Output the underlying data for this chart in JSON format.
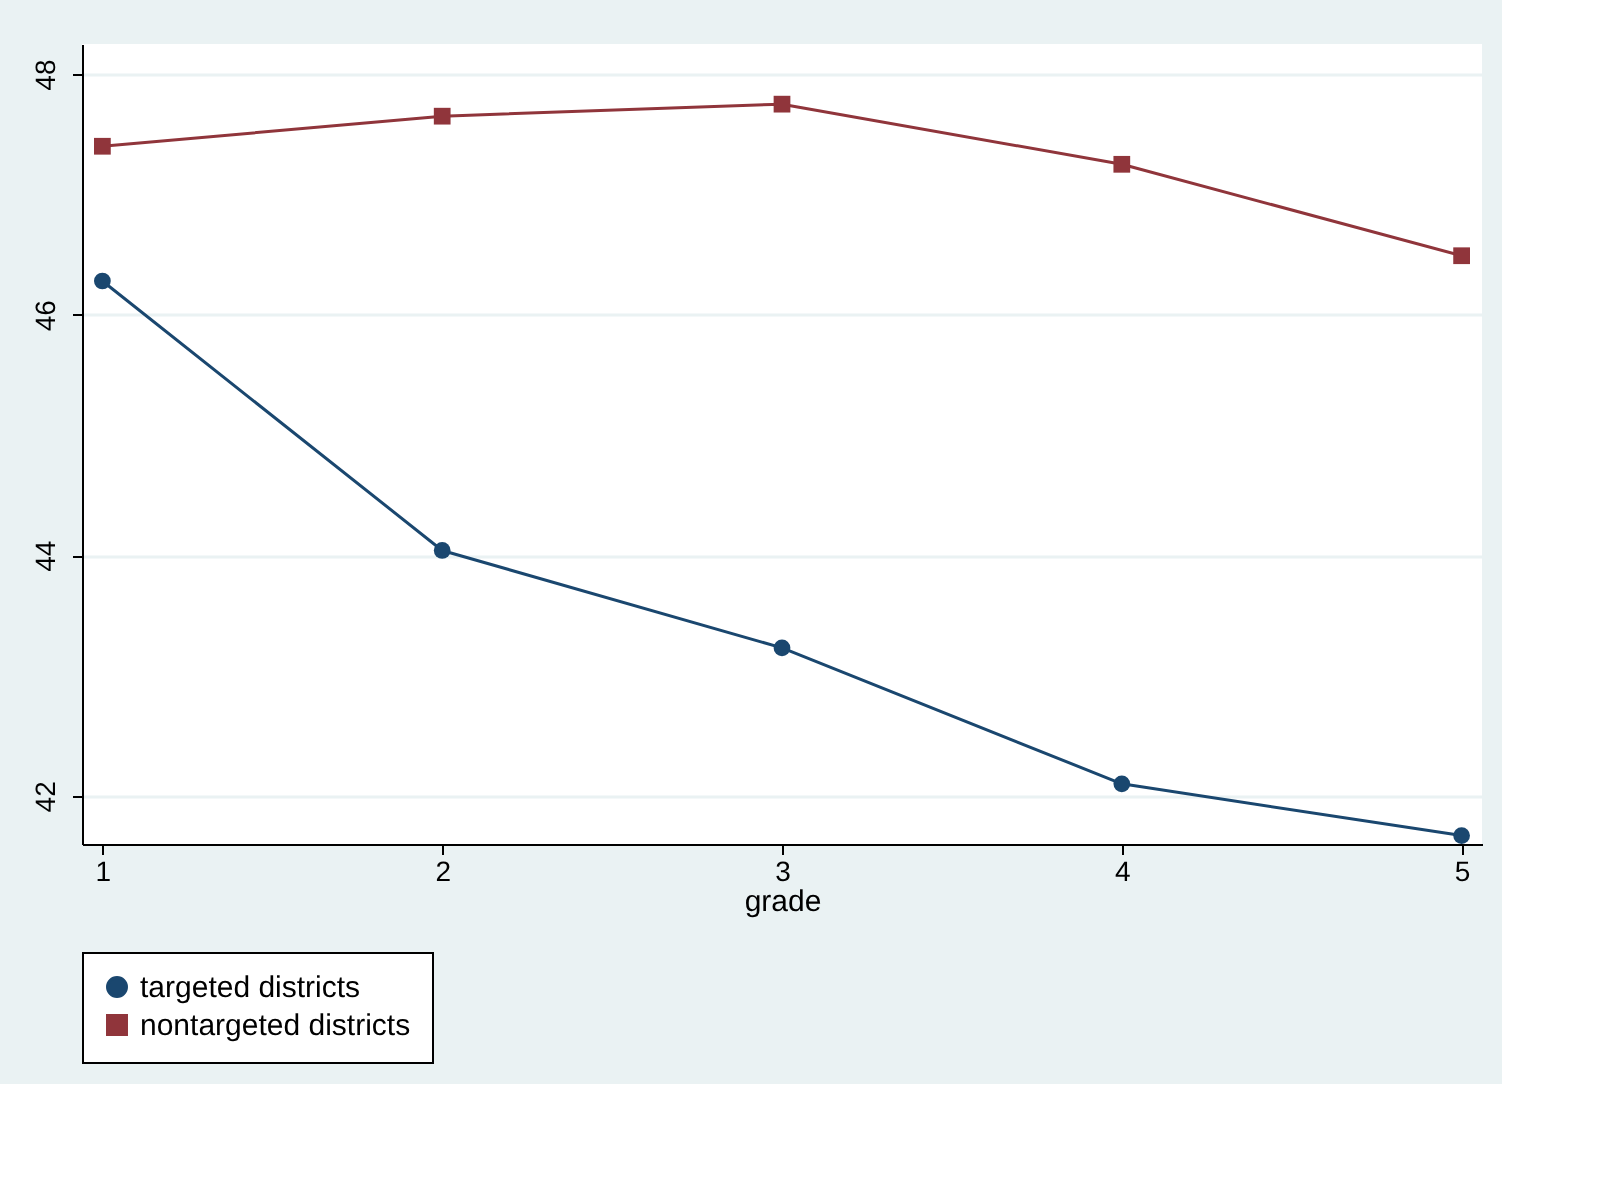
{
  "chart_data": {
    "type": "line",
    "xlabel": "grade",
    "x": [
      1,
      2,
      3,
      4,
      5
    ],
    "xlim": [
      0.94,
      5.06
    ],
    "xticks": [
      1,
      2,
      3,
      4,
      5
    ],
    "ylim": [
      41.6,
      48.25
    ],
    "yticks": [
      42,
      44,
      46,
      48
    ],
    "grid": "y",
    "legend": "bottom",
    "series": [
      {
        "name": "targeted districts",
        "color": "#1a476f",
        "marker": "circle",
        "values": [
          46.28,
          44.04,
          43.23,
          42.1,
          41.67
        ]
      },
      {
        "name": "nontargeted districts",
        "color": "#90353b",
        "marker": "square",
        "values": [
          47.4,
          47.65,
          47.75,
          47.25,
          46.49
        ]
      }
    ]
  }
}
